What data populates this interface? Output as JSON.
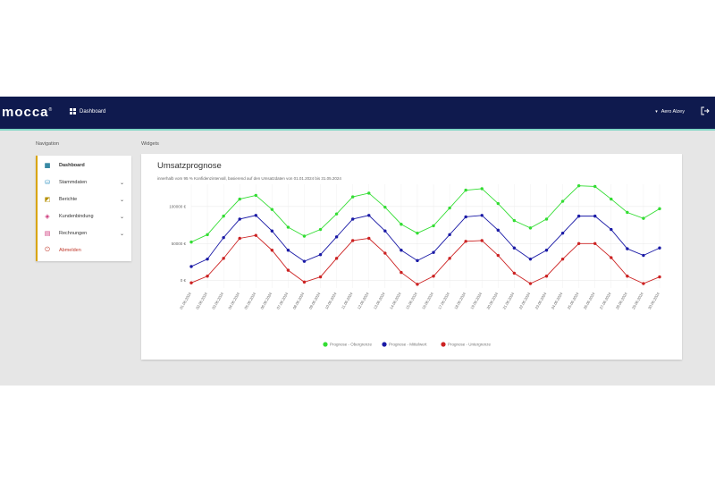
{
  "header": {
    "logo": "mocca",
    "logo_mark": "®",
    "nav_title": "Dashboard",
    "user_name": "Aero Alzey"
  },
  "sidebar": {
    "section_label": "Navigation",
    "items": [
      {
        "label": "Dashboard",
        "icon": "grid-icon",
        "active": true,
        "expandable": false
      },
      {
        "label": "Stammdaten",
        "icon": "database-icon",
        "expandable": true
      },
      {
        "label": "Berichte",
        "icon": "chart-icon",
        "expandable": true
      },
      {
        "label": "Kundenbindung",
        "icon": "tag-icon",
        "expandable": true
      },
      {
        "label": "Rechnungen",
        "icon": "invoice-icon",
        "expandable": true
      },
      {
        "label": "Abmelden",
        "icon": "power-icon",
        "expandable": false
      }
    ]
  },
  "main": {
    "section_label": "Widgets",
    "widget": {
      "title": "Umsatzprognose",
      "subtitle": "innerhalb vom 95 % Konfidenzintervall, basierend auf den Umsatzdaten von 01.01.2024 bis 31.05.2024"
    }
  },
  "colors": {
    "header_bg": "#0f1a4e",
    "accent": "#7fd6c4",
    "upper": "#33dd33",
    "mean": "#1a1aa6",
    "lower": "#cc2222"
  },
  "chart_data": {
    "type": "line",
    "y_ticks": [
      "0 €",
      "50000 €",
      "100000 €"
    ],
    "ylim": [
      -10000,
      130000
    ],
    "x": [
      "01.06.2024",
      "02.06.2024",
      "03.06.2024",
      "04.06.2024",
      "05.06.2024",
      "06.06.2024",
      "07.06.2024",
      "08.06.2024",
      "09.06.2024",
      "10.06.2024",
      "11.06.2024",
      "12.06.2024",
      "13.06.2024",
      "14.06.2024",
      "15.06.2024",
      "16.06.2024",
      "17.06.2024",
      "18.06.2024",
      "19.06.2024",
      "20.06.2024",
      "21.06.2024",
      "22.06.2024",
      "23.06.2024",
      "24.06.2024",
      "25.06.2024",
      "26.06.2024",
      "27.06.2024",
      "28.06.2024",
      "29.06.2024",
      "30.06.2024"
    ],
    "series": [
      {
        "name": "Prognose - Obergrenze",
        "color": "#33dd33",
        "values": [
          52000,
          62000,
          87000,
          110000,
          115000,
          96000,
          72000,
          60000,
          69000,
          90000,
          113000,
          118000,
          99000,
          76000,
          64000,
          74000,
          98000,
          122000,
          124000,
          104000,
          81000,
          71000,
          83000,
          107000,
          128000,
          127000,
          110000,
          92000,
          84000,
          97000
        ]
      },
      {
        "name": "Prognose - Mittelwert",
        "color": "#1a1aa6",
        "values": [
          19000,
          29000,
          58000,
          83000,
          88000,
          67000,
          41000,
          26000,
          35000,
          59000,
          83000,
          88000,
          67000,
          41000,
          27000,
          38000,
          62000,
          86000,
          88000,
          68000,
          44000,
          29000,
          41000,
          64000,
          87000,
          87000,
          69000,
          43000,
          34000,
          44000
        ]
      },
      {
        "name": "Prognose - Untergrenze",
        "color": "#cc2222",
        "values": [
          -3000,
          6000,
          30000,
          57000,
          61000,
          41000,
          14000,
          -2000,
          5000,
          30000,
          54000,
          57000,
          37000,
          11000,
          -5000,
          6000,
          30000,
          53000,
          54000,
          34000,
          10000,
          -4000,
          6000,
          29000,
          50000,
          50000,
          31000,
          6000,
          -4000,
          5000
        ]
      }
    ]
  }
}
